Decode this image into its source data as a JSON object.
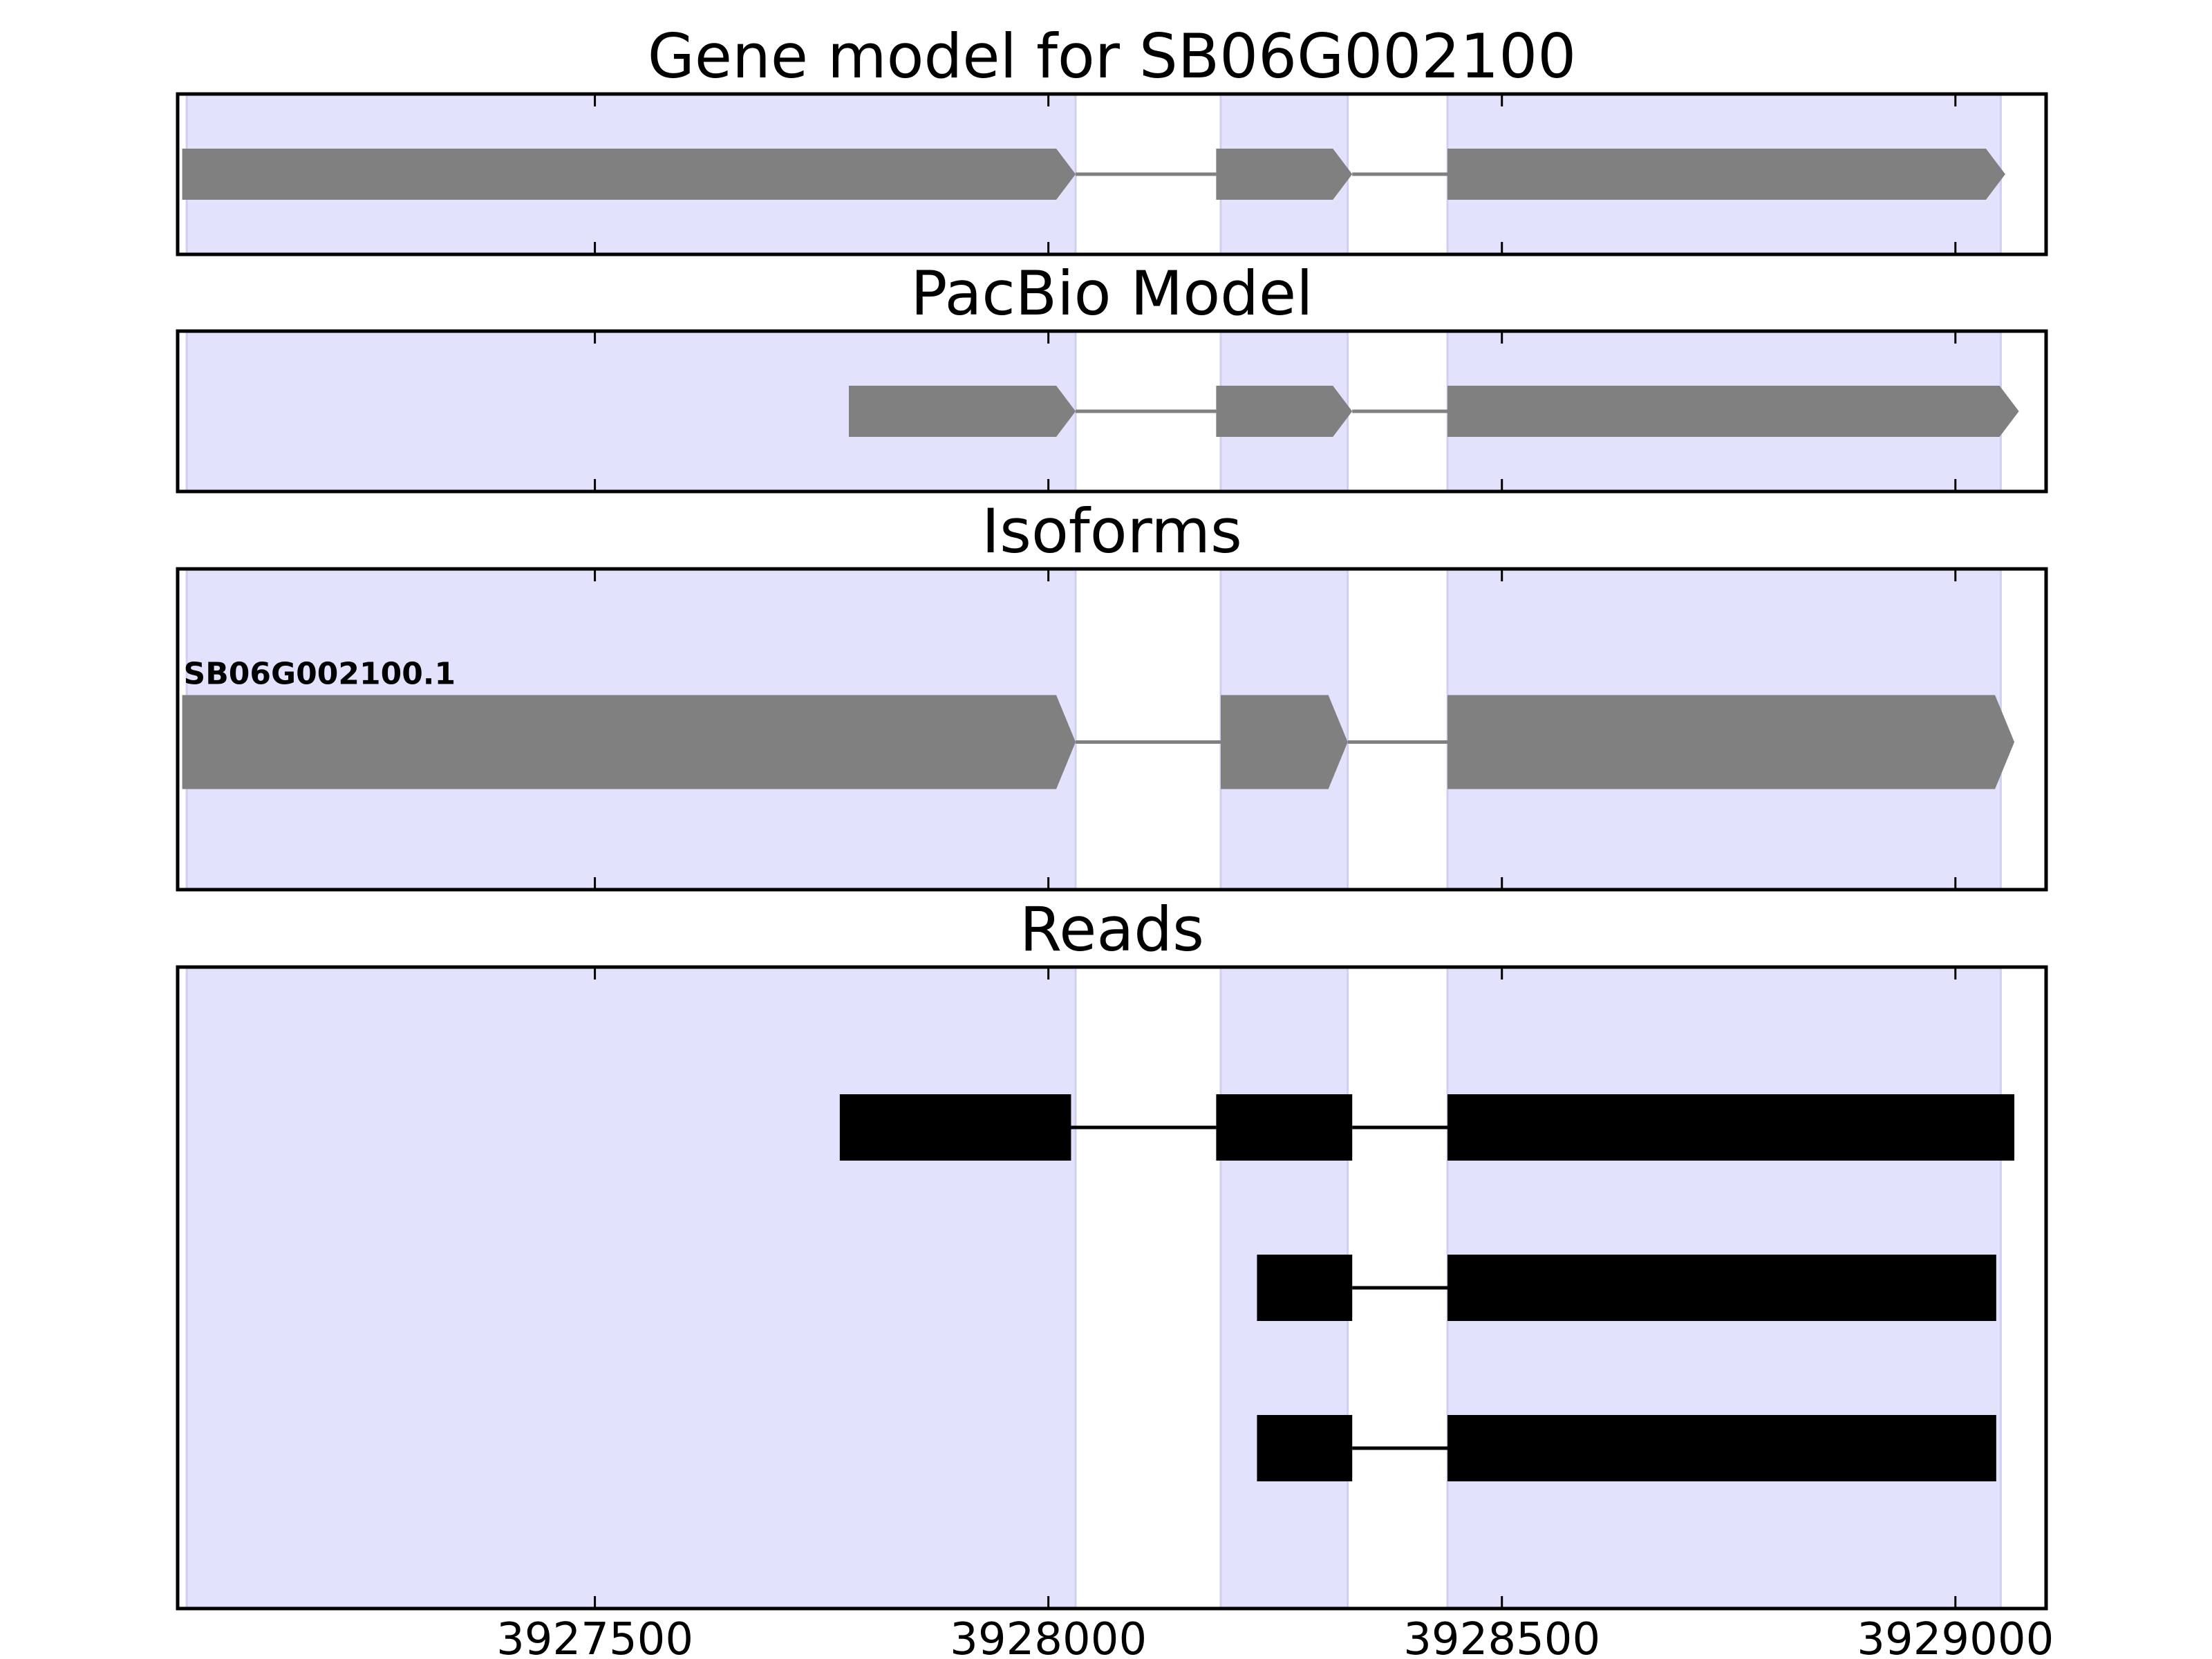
{
  "chart_data": {
    "type": "gene-model",
    "x_unit": "genomic position (bp)",
    "xlim": [
      3927040,
      3929100
    ],
    "x_ticks": [
      3927500,
      3928000,
      3928500,
      3929000
    ],
    "x_tick_labels": [
      "3927500",
      "3928000",
      "3928500",
      "3929000"
    ],
    "exon_highlights": [
      [
        3927050,
        3928030
      ],
      [
        3928190,
        3928330
      ],
      [
        3928440,
        3929050
      ]
    ],
    "highlight_color": "#e2e2fc",
    "feature_color": "#808080",
    "read_color": "#000000",
    "panels": [
      {
        "title": "Gene model for SB06G002100",
        "kind": "gene",
        "tracks": [
          {
            "label": "",
            "exons": [
              [
                3927045,
                3928030
              ],
              [
                3928185,
                3928335
              ],
              [
                3928440,
                3929055
              ]
            ]
          }
        ]
      },
      {
        "title": "PacBio Model",
        "kind": "gene",
        "tracks": [
          {
            "label": "",
            "exons": [
              [
                3927780,
                3928030
              ],
              [
                3928185,
                3928335
              ],
              [
                3928440,
                3929070
              ]
            ]
          }
        ]
      },
      {
        "title": "Isoforms",
        "kind": "isoform",
        "tracks": [
          {
            "label": "SB06G002100.1",
            "exons": [
              [
                3927045,
                3928030
              ],
              [
                3928190,
                3928330
              ],
              [
                3928440,
                3929065
              ]
            ]
          }
        ]
      },
      {
        "title": "Reads",
        "kind": "reads",
        "tracks": [
          {
            "label": "",
            "exons": [
              [
                3927770,
                3928025
              ],
              [
                3928185,
                3928335
              ],
              [
                3928440,
                3929065
              ]
            ]
          },
          {
            "label": "",
            "exons": [
              [
                3928230,
                3928335
              ],
              [
                3928440,
                3929045
              ]
            ]
          },
          {
            "label": "",
            "exons": [
              [
                3928230,
                3928335
              ],
              [
                3928440,
                3929045
              ]
            ]
          }
        ]
      }
    ]
  }
}
